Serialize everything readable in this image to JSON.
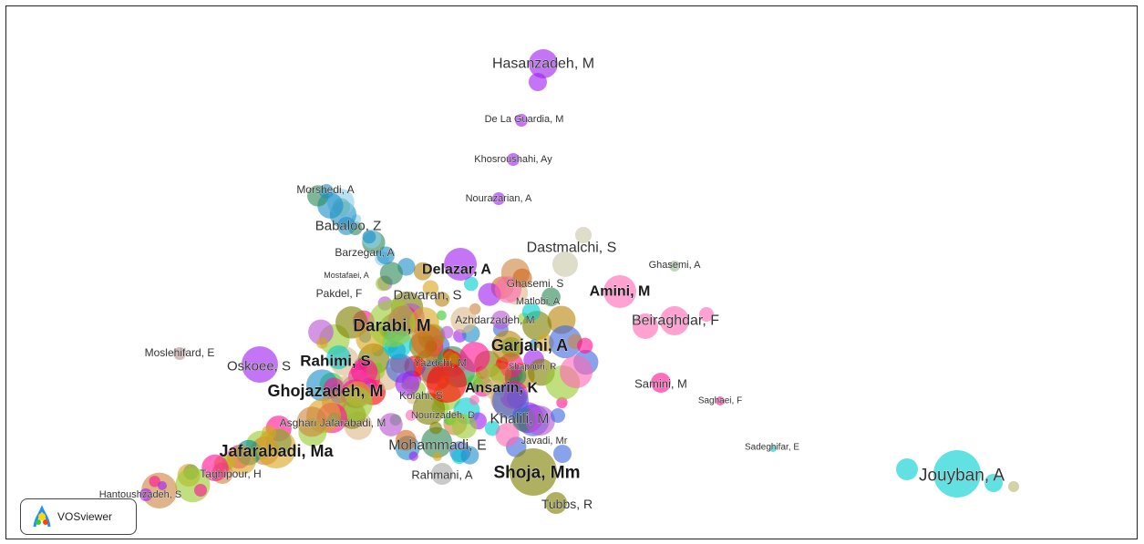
{
  "app": {
    "brand": "VOSviewer"
  },
  "map": {
    "labels": [
      {
        "text": "Hasanzadeh, M",
        "color": "#a020f0",
        "size": 16,
        "weight": "normal"
      },
      {
        "text": "De La Guardia, M",
        "color": "#a020f0",
        "size": 11,
        "weight": "normal"
      },
      {
        "text": "Khosroushahi, Ay",
        "color": "#a020f0",
        "size": 11,
        "weight": "normal"
      },
      {
        "text": "Nourazarian, A",
        "color": "#a020f0",
        "size": 11,
        "weight": "normal"
      },
      {
        "text": "Morshedi, A",
        "color": "#1e8fc8",
        "size": 12,
        "weight": "normal"
      },
      {
        "text": "Babaloo, Z",
        "color": "#1e8fc8",
        "size": 15,
        "weight": "normal"
      },
      {
        "text": "Barzegari, A",
        "color": "#1e8fc8",
        "size": 12,
        "weight": "normal"
      },
      {
        "text": "Mostafaei, A",
        "color": "#2e8b57",
        "size": 9,
        "weight": "normal"
      },
      {
        "text": "Pakdel, F",
        "color": "#9acd32",
        "size": 12,
        "weight": "normal"
      },
      {
        "text": "Delazar, A",
        "color": "#a020f0",
        "size": 16,
        "weight": "bold"
      },
      {
        "text": "Dastmalchi, S",
        "color": "#c8c8a8",
        "size": 16,
        "weight": "normal"
      },
      {
        "text": "Ghasemi, A",
        "color": "#90c090",
        "size": 11,
        "weight": "normal"
      },
      {
        "text": "Ghasemi, S",
        "color": "#7fffd4",
        "size": 12,
        "weight": "normal"
      },
      {
        "text": "Matlobi, A",
        "color": "#a020f0",
        "size": 11,
        "weight": "normal"
      },
      {
        "text": "Davaran, S",
        "color": "#b8860b",
        "size": 15,
        "weight": "normal"
      },
      {
        "text": "Amini, M",
        "color": "#ff69b4",
        "size": 16,
        "weight": "bold"
      },
      {
        "text": "Azhdarzadeh, M",
        "color": "#a020f0",
        "size": 12,
        "weight": "normal"
      },
      {
        "text": "Beiraghdar, F",
        "color": "#ff69b4",
        "size": 16,
        "weight": "normal"
      },
      {
        "text": "Darabi, M",
        "color": "#9acd32",
        "size": 19,
        "weight": "bold"
      },
      {
        "text": "Garjani, A",
        "color": "#ff1493",
        "size": 18,
        "weight": "bold"
      },
      {
        "text": "Moslehifard, E",
        "color": "#bc8f8f",
        "size": 12,
        "weight": "normal"
      },
      {
        "text": "Oskoee, S",
        "color": "#a020f0",
        "size": 15,
        "weight": "normal"
      },
      {
        "text": "Rahimi, S",
        "color": "#ffa500",
        "size": 17,
        "weight": "bold"
      },
      {
        "text": "Yazdchi, M",
        "color": "#a020f0",
        "size": 12,
        "weight": "normal"
      },
      {
        "text": "Shapouri, R",
        "color": "#ff1493",
        "size": 10,
        "weight": "normal"
      },
      {
        "text": "Samini, M",
        "color": "#ff1493",
        "size": 13,
        "weight": "normal"
      },
      {
        "text": "Ghojazadeh, M",
        "color": "#b8860b",
        "size": 18,
        "weight": "bold"
      },
      {
        "text": "Ansarin, K",
        "color": "#ff0000",
        "size": 16,
        "weight": "bold"
      },
      {
        "text": "Kolahi, S",
        "color": "#ff0000",
        "size": 12,
        "weight": "normal"
      },
      {
        "text": "Saghaei, F",
        "color": "#ff1493",
        "size": 10,
        "weight": "normal"
      },
      {
        "text": "Asghari Jafarabadi, M",
        "color": "#cd853f",
        "size": 12,
        "weight": "normal"
      },
      {
        "text": "Nourizadeh, D",
        "color": "#32cd32",
        "size": 11,
        "weight": "normal"
      },
      {
        "text": "Khalili, M",
        "color": "#4169e1",
        "size": 16,
        "weight": "normal"
      },
      {
        "text": "Javadi, Mr",
        "color": "#4169e1",
        "size": 11,
        "weight": "normal"
      },
      {
        "text": "Mohammadi, E",
        "color": "#deb887",
        "size": 16,
        "weight": "normal"
      },
      {
        "text": "Jafarabadi, Ma",
        "color": "#daa520",
        "size": 18,
        "weight": "bold"
      },
      {
        "text": "Sadeghifar, E",
        "color": "#00ced1",
        "size": 10,
        "weight": "normal"
      },
      {
        "text": "Taghipour, H",
        "color": "#daa520",
        "size": 12,
        "weight": "normal"
      },
      {
        "text": "Rahmani, A",
        "color": "#a9a9a9",
        "size": 13,
        "weight": "normal"
      },
      {
        "text": "Shoja, Mm",
        "color": "#808000",
        "size": 19,
        "weight": "bold"
      },
      {
        "text": "Jouyban, A",
        "color": "#00ced1",
        "size": 19,
        "weight": "normal"
      },
      {
        "text": "Hantoushzadeh, S",
        "color": "#a020f0",
        "size": 11,
        "weight": "normal"
      },
      {
        "text": "Tubbs, R",
        "color": "#808000",
        "size": 14,
        "weight": "normal"
      }
    ]
  }
}
